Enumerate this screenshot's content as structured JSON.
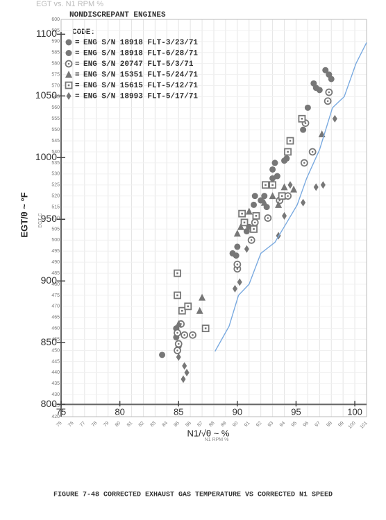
{
  "chart_data": {
    "type": "scatter",
    "title": "EGT vs. N1 RPM %",
    "subtitle": "NONDISCREPANT ENGINES",
    "legend_title": "CODE:",
    "legend_separator": "=",
    "x_label": "N1 RPM %",
    "y_label": "EGT C",
    "x2_label": "N1/√θ ~ %",
    "y2_label": "EGT/θ ~ °F",
    "caption": "FIGURE 7-48  CORRECTED EXHAUST GAS TEMPERATURE VS CORRECTED N1 SPEED",
    "xlim": [
      75,
      101
    ],
    "xticks": [
      75,
      76,
      77,
      78,
      79,
      80,
      81,
      82,
      83,
      84,
      85,
      86,
      87,
      88,
      89,
      90,
      91,
      92,
      93,
      94,
      95,
      96,
      97,
      98,
      99,
      100,
      101
    ],
    "x2ticks": [
      75,
      80,
      85,
      90,
      95,
      100
    ],
    "ylim": [
      420,
      600
    ],
    "yticks": [
      420,
      425,
      430,
      435,
      440,
      445,
      450,
      455,
      460,
      465,
      470,
      475,
      480,
      485,
      490,
      495,
      500,
      505,
      510,
      515,
      520,
      525,
      530,
      535,
      540,
      545,
      550,
      555,
      560,
      565,
      570,
      575,
      580,
      585,
      590,
      595,
      600
    ],
    "y2lim": [
      790,
      1112
    ],
    "y2ticks": [
      800,
      850,
      900,
      950,
      1000,
      1050,
      1100
    ],
    "grid": true,
    "series": [
      {
        "name": "ENG S/N 18918 FLT-3/23/71",
        "marker": "circle",
        "color": "#777777",
        "x": [
          83.6,
          84.8,
          84.8,
          89.9,
          90.8,
          91.5,
          92,
          93.2,
          94,
          95.6,
          96,
          97,
          97.5,
          97.8,
          98,
          93,
          92.5,
          91
        ],
        "values": [
          448,
          456,
          460,
          493,
          504,
          520,
          518,
          535,
          536,
          550,
          560,
          568,
          577,
          575,
          573,
          528,
          515,
          506
        ]
      },
      {
        "name": "ENG S/N 18918 FLT-6/28/71",
        "marker": "circle",
        "color": "#777777",
        "x": [
          89.6,
          90,
          91.4,
          92.3,
          93,
          93.4,
          96.7,
          96.5,
          94.2,
          85
        ],
        "values": [
          494,
          497,
          516,
          520,
          532,
          529,
          569,
          571,
          537,
          452
        ]
      },
      {
        "name": "ENG S/N 20747 FLT-5/3/71",
        "marker": "dot-circle",
        "color": "#777777",
        "x": [
          84.9,
          85,
          85.5,
          86.2,
          90,
          90,
          91.2,
          91.5,
          92.6,
          93.6,
          94.3,
          95.7,
          96.4,
          97.7,
          97.8,
          95.8,
          84.9,
          85.2
        ],
        "values": [
          450,
          453,
          457,
          457,
          487,
          489,
          500,
          508,
          510,
          518,
          520,
          535,
          540,
          563,
          567,
          553,
          458,
          462
        ]
      },
      {
        "name": "ENG S/N 15351 FLT-5/24/71",
        "marker": "triangle",
        "color": "#777777",
        "x": [
          87,
          86.8,
          90.3,
          90,
          91,
          92.3,
          93,
          94,
          97.2,
          93.5,
          94.8,
          85
        ],
        "values": [
          474,
          468,
          506,
          503,
          513,
          517,
          520,
          524,
          548,
          516,
          523,
          462
        ]
      },
      {
        "name": "ENG S/N 15615 FLT-5/12/71",
        "marker": "dot-square",
        "color": "#777777",
        "x": [
          84.9,
          84.9,
          85.3,
          85.8,
          87.3,
          90.4,
          91.4,
          91.6,
          92.4,
          93,
          93.8,
          94.3,
          94.5,
          95.5,
          90.6
        ],
        "values": [
          485,
          475,
          468,
          470,
          460,
          512,
          505,
          511,
          525,
          525,
          520,
          540,
          545,
          555,
          508
        ]
      },
      {
        "name": "ENG S/N 18993 FLT-5/17/71",
        "marker": "diamond",
        "color": "#777777",
        "x": [
          85,
          85.5,
          85.7,
          85.4,
          89.8,
          90.2,
          90.8,
          93.5,
          94.5,
          95.6,
          96.7,
          97.3,
          98.3,
          94
        ],
        "values": [
          447,
          443,
          440,
          437,
          478,
          481,
          496,
          502,
          525,
          517,
          524,
          525,
          555,
          511
        ]
      },
      {
        "marker": "line",
        "color": "#7aaae0",
        "x": [
          88.1,
          89.3,
          90.1,
          91,
          92,
          93.2,
          94.1,
          95.1,
          95.9,
          97,
          98.1,
          99.1,
          100.1,
          101
        ],
        "values": [
          449.6,
          461,
          475,
          480,
          494,
          499,
          507,
          516,
          528,
          541,
          560,
          565,
          580,
          589.5
        ]
      }
    ]
  }
}
